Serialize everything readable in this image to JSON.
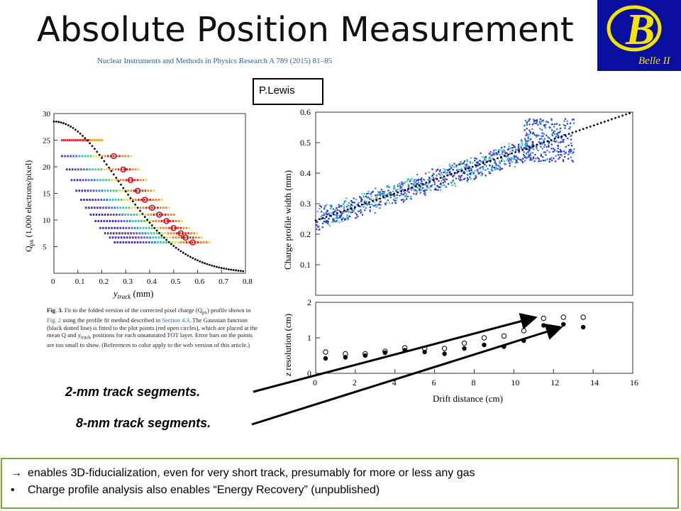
{
  "title": "Absolute Position Measurement",
  "citation": "Nuclear Instruments and Methods in Physics Research A 789 (2015) 81–85",
  "logo": {
    "letter": "B",
    "text": "Belle II",
    "bg": "#0a0fa0",
    "fg": "#f2e600"
  },
  "author_box": "P.Lewis",
  "figure_caption": {
    "bold": "Fig. 3.",
    "text_a": " Fit to the folded version of the corrected pixel charge (Q",
    "sub": "px",
    "text_b": ") profile shown in ",
    "link1": "Fig. 2",
    "text_c": " using the profile fit method described in ",
    "link2": "Section 4.3",
    "text_d": ". The Gaussian function (black dotted line) is fitted to the plot points (red open circles), which are placed at the mean Q and y",
    "sub2": "track",
    "text_e": " positions for each unsaturated TOT layer. Error bars on the points are too small to show. (References to color apply to the web version of this article.)"
  },
  "labels": {
    "seg2": "2-mm track segments.",
    "seg8": "8-mm track segments."
  },
  "bullets": [
    {
      "marker": "→",
      "text": "enables 3D-fiducialization, even for very short track, presumably for more or less any gas"
    },
    {
      "marker": "•",
      "text": "Charge profile analysis also enables “Energy Recovery” (unpublished)"
    }
  ],
  "chart_data": [
    {
      "type": "scatter",
      "xlabel": "y_track (mm)",
      "ylabel": "Q_px (1,000 electrons/pixel)",
      "xlim": [
        0,
        0.8
      ],
      "ylim": [
        0,
        30
      ],
      "x_ticks": [
        "0",
        "0.1",
        "0.2",
        "0.3",
        "0.4",
        "0.5",
        "0.6",
        "0.7",
        "0.8"
      ],
      "y_ticks": [
        "5",
        "10",
        "15",
        "20",
        "25",
        "30"
      ],
      "series": [
        {
          "values": [
            [
              0.25,
              22
            ],
            [
              0.29,
              19.5
            ],
            [
              0.32,
              17.5
            ],
            [
              0.35,
              15.5
            ],
            [
              0.38,
              13.8
            ],
            [
              0.41,
              12.3
            ],
            [
              0.44,
              11
            ],
            [
              0.47,
              9.8
            ],
            [
              0.5,
              8.5
            ],
            [
              0.53,
              7.5
            ],
            [
              0.55,
              6.7
            ],
            [
              0.58,
              5.8
            ]
          ]
        }
      ]
    },
    {
      "type": "scatter",
      "xlabel": "",
      "ylabel": "Charge profile width (mm)",
      "xlim": [
        0,
        16
      ],
      "ylim": [
        0,
        0.6
      ],
      "y_ticks": [
        "0.1",
        "0.2",
        "0.3",
        "0.4",
        "0.5",
        "0.6"
      ]
    },
    {
      "type": "scatter",
      "xlabel": "Drift distance (cm)",
      "ylabel": "z resolution (cm)",
      "xlim": [
        0,
        16
      ],
      "ylim": [
        0,
        2
      ],
      "x_ticks": [
        "0",
        "2",
        "4",
        "6",
        "8",
        "10",
        "12",
        "14",
        "16"
      ],
      "y_ticks": [
        "0",
        "1",
        "2"
      ],
      "series": [
        {
          "values": [
            [
              0.5,
              0.6
            ],
            [
              1.5,
              0.55
            ],
            [
              2.5,
              0.55
            ],
            [
              3.5,
              0.62
            ],
            [
              4.5,
              0.72
            ],
            [
              5.5,
              0.7
            ],
            [
              6.5,
              0.7
            ],
            [
              7.5,
              0.85
            ],
            [
              8.5,
              1.0
            ],
            [
              9.5,
              1.05
            ],
            [
              10.5,
              1.2
            ],
            [
              11.5,
              1.55
            ],
            [
              12.5,
              1.58
            ],
            [
              13.5,
              1.58
            ]
          ]
        },
        {
          "values": [
            [
              0.5,
              0.42
            ],
            [
              1.5,
              0.45
            ],
            [
              2.5,
              0.5
            ],
            [
              3.5,
              0.58
            ],
            [
              4.5,
              0.65
            ],
            [
              5.5,
              0.6
            ],
            [
              6.5,
              0.55
            ],
            [
              7.5,
              0.7
            ],
            [
              8.5,
              0.8
            ],
            [
              9.5,
              0.75
            ],
            [
              10.5,
              0.92
            ],
            [
              11.5,
              1.35
            ],
            [
              12.5,
              1.38
            ],
            [
              13.5,
              1.3
            ]
          ]
        }
      ]
    }
  ]
}
